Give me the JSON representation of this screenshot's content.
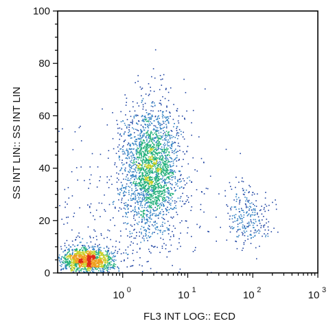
{
  "chart_data": {
    "type": "scatter",
    "title": "",
    "xlabel": "FL3 INT LOG:: ECD",
    "ylabel": "SS INT LIN:: SS INT LIN",
    "xscale": "log",
    "xlim": [
      0.1,
      1000
    ],
    "ylim": [
      0,
      100
    ],
    "grid": false,
    "legend": "none",
    "density_colormap": [
      "#1a3fa0",
      "#2f7fc2",
      "#22b07a",
      "#c8d22a",
      "#f0a020",
      "#e02818"
    ],
    "x_ticks": [
      {
        "base": "10",
        "exp": "0",
        "value": 1
      },
      {
        "base": "10",
        "exp": "1",
        "value": 10
      },
      {
        "base": "10",
        "exp": "2",
        "value": 100
      },
      {
        "base": "10",
        "exp": "3",
        "value": 1000
      }
    ],
    "y_ticks": [
      {
        "label": "0",
        "value": 0
      },
      {
        "label": "20",
        "value": 20
      },
      {
        "label": "40",
        "value": 40
      },
      {
        "label": "60",
        "value": 60
      },
      {
        "label": "80",
        "value": 80
      },
      {
        "label": "100",
        "value": 100
      }
    ],
    "populations": [
      {
        "x_center": 0.28,
        "x_spread_decades": 0.2,
        "y_center": 5,
        "y_spread": 2.5,
        "events": 1400
      },
      {
        "x_center": 2.7,
        "x_spread_decades": 0.22,
        "y_center": 40,
        "y_spread": 12,
        "events": 2300
      },
      {
        "x_center": 85,
        "x_spread_decades": 0.18,
        "y_center": 22,
        "y_spread": 6,
        "events": 260
      },
      {
        "x_center": 1.0,
        "x_spread_decades": 0.8,
        "y_center": 20,
        "y_spread": 18,
        "events": 350
      }
    ]
  }
}
